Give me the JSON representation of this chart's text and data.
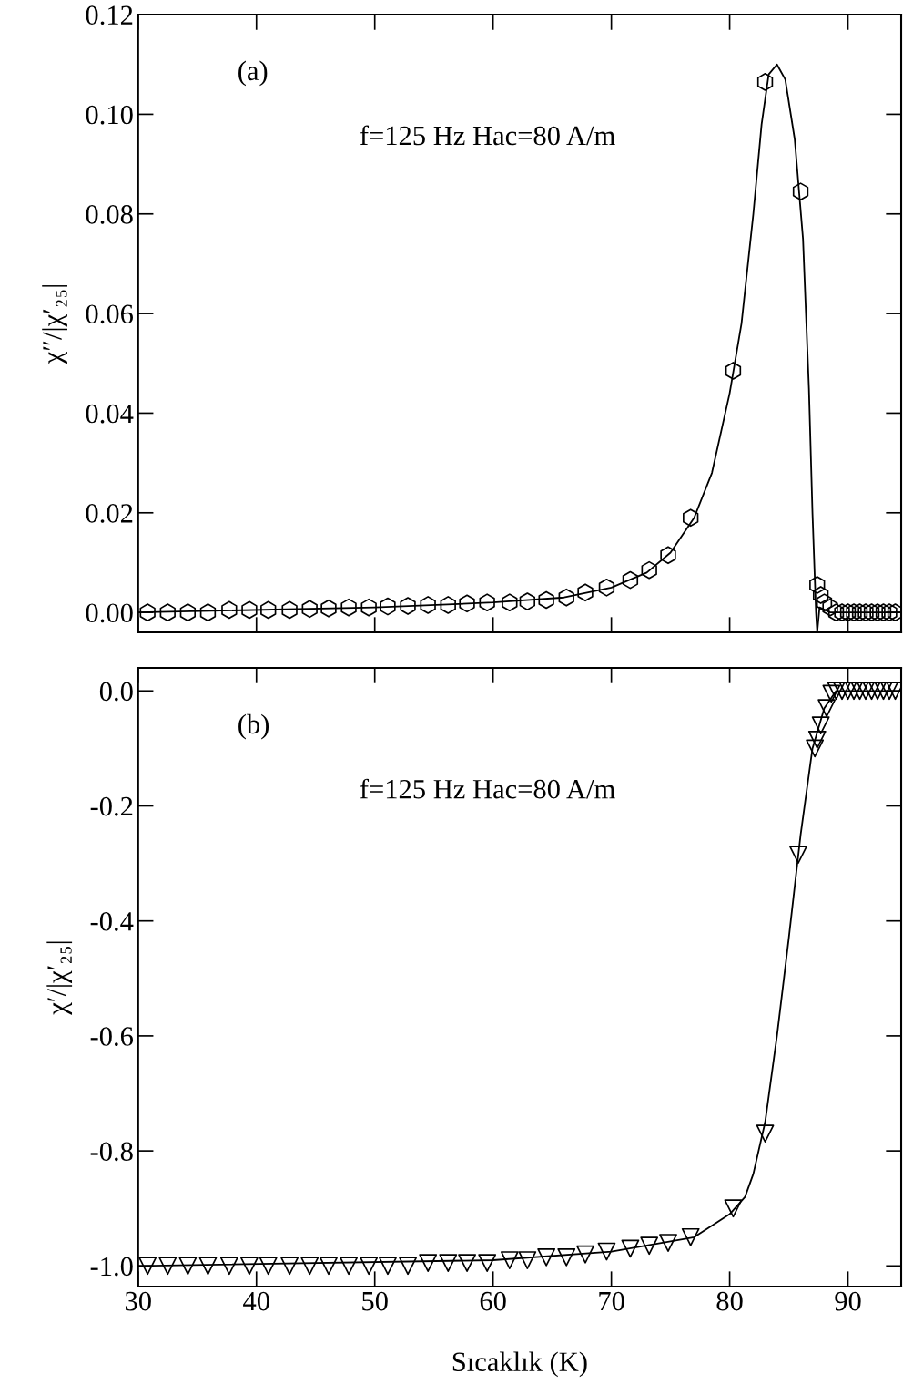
{
  "chart_data": [
    {
      "type": "scatter",
      "ylabel": "χ″/|χ′₂₅|",
      "annotations": [
        "(a)",
        "f=125 Hz Hac=80 A/m"
      ],
      "xlim": [
        30,
        94.5
      ],
      "ylim": [
        -0.004,
        0.12
      ],
      "xticks": [
        30,
        40,
        50,
        60,
        70,
        80,
        90
      ],
      "yticks": [
        {
          "value": 0,
          "label": "0.00"
        },
        {
          "value": 0.02,
          "label": "0.02"
        },
        {
          "value": 0.04,
          "label": "0.04"
        },
        {
          "value": 0.06,
          "label": "0.06"
        },
        {
          "value": 0.08,
          "label": "0.08"
        },
        {
          "value": 0.1,
          "label": "0.10"
        },
        {
          "value": 0.12,
          "label": "0.12"
        }
      ],
      "tick_labels": "y",
      "grid": false,
      "legend": false,
      "series": [
        {
          "color": "#000000",
          "x": [
            30.8,
            32.5,
            34.2,
            35.9,
            37.7,
            39.4,
            41.0,
            42.8,
            44.5,
            46.1,
            47.8,
            49.5,
            51.1,
            52.8,
            54.5,
            56.2,
            57.8,
            59.5,
            61.4,
            62.9,
            64.5,
            66.2,
            67.8,
            69.6,
            71.6,
            73.2,
            74.8,
            76.7,
            80.3,
            83.0,
            86.0,
            87.4,
            87.7,
            88.0,
            88.5,
            89.0,
            89.5,
            90.0,
            90.5,
            91.0,
            91.5,
            92.0,
            92.5,
            93.0,
            93.5,
            94.0
          ],
          "values": [
            0.0,
            0.0,
            0.0,
            0.0,
            0.0005,
            0.0005,
            0.0005,
            0.0005,
            0.0007,
            0.0008,
            0.001,
            0.001,
            0.0012,
            0.0013,
            0.0015,
            0.0015,
            0.0018,
            0.002,
            0.002,
            0.0022,
            0.0025,
            0.003,
            0.004,
            0.005,
            0.0065,
            0.0085,
            0.0115,
            0.019,
            0.0485,
            0.1065,
            0.0845,
            0.0055,
            0.0035,
            0.002,
            0.001,
            0.0,
            0.0,
            0.0,
            0.0,
            0.0,
            0.0,
            0.0,
            0.0,
            0.0,
            0.0,
            0.0
          ]
        },
        {
          "type": "line",
          "line_style": "solid",
          "color": "#000000",
          "x": [
            30,
            50,
            60,
            66,
            70,
            73,
            75,
            77,
            78.5,
            80,
            81,
            82,
            82.7,
            83.3,
            84,
            84.7,
            85.5,
            86.2,
            86.7,
            87.0,
            87.3,
            87.4,
            87.6,
            88.5,
            94.5
          ],
          "values": [
            0.0,
            0.001,
            0.002,
            0.003,
            0.005,
            0.008,
            0.012,
            0.019,
            0.028,
            0.044,
            0.058,
            0.08,
            0.098,
            0.108,
            0.11,
            0.107,
            0.095,
            0.075,
            0.045,
            0.02,
            0.0,
            -0.004,
            0.001,
            0.0,
            0.0
          ]
        }
      ]
    },
    {
      "type": "scatter",
      "xlabel": "Sıcaklık (K)",
      "ylabel": "χ′/|χ′₂₅|",
      "annotations": [
        "(b)",
        "f=125 Hz Hac=80 A/m"
      ],
      "xlim": [
        30,
        94.5
      ],
      "ylim": [
        -1.036,
        0.04
      ],
      "xticks": [
        30,
        40,
        50,
        60,
        70,
        80,
        90
      ],
      "yticks": [
        {
          "value": -1.0,
          "label": "-1.0"
        },
        {
          "value": -0.8,
          "label": "-0.8"
        },
        {
          "value": -0.6,
          "label": "-0.6"
        },
        {
          "value": -0.4,
          "label": "-0.4"
        },
        {
          "value": -0.2,
          "label": "-0.2"
        },
        {
          "value": 0,
          "label": "0.0"
        }
      ],
      "grid": false,
      "legend": false,
      "series": [
        {
          "marker": "triangle",
          "color": "#000000",
          "x": [
            30.8,
            32.5,
            34.2,
            35.9,
            37.7,
            39.4,
            41.0,
            42.8,
            44.5,
            46.1,
            47.8,
            49.5,
            51.1,
            52.8,
            54.5,
            56.2,
            57.8,
            59.5,
            61.4,
            62.9,
            64.5,
            66.2,
            67.8,
            69.6,
            71.6,
            73.2,
            74.8,
            76.7,
            80.3,
            83.0,
            85.8,
            87.2,
            87.4,
            87.7,
            88.2,
            88.6,
            89.0,
            89.5,
            90.0,
            90.5,
            91.0,
            91.5,
            92.0,
            92.5,
            93.0,
            93.5,
            94.0
          ],
          "values": [
            -1.0,
            -1.0,
            -1.0,
            -1.0,
            -1.0,
            -1.0,
            -1.0,
            -1.0,
            -1.0,
            -1.0,
            -1.0,
            -1.0,
            -1.0,
            -1.0,
            -0.995,
            -0.995,
            -0.995,
            -0.995,
            -0.99,
            -0.99,
            -0.985,
            -0.985,
            -0.98,
            -0.975,
            -0.97,
            -0.965,
            -0.96,
            -0.95,
            -0.9,
            -0.77,
            -0.285,
            -0.1,
            -0.085,
            -0.06,
            -0.03,
            -0.005,
            0.0,
            0.0,
            0.0,
            0.0,
            0.0,
            0.0,
            0.0,
            0.0,
            0.0,
            0.0,
            0.0
          ]
        },
        {
          "type": "line",
          "line_style": "solid",
          "color": "#000000",
          "x": [
            30,
            60,
            70,
            77,
            80,
            81.3,
            82,
            83,
            84,
            85,
            86,
            87,
            88,
            89,
            94.5
          ],
          "values": [
            -1.0,
            -0.99,
            -0.975,
            -0.95,
            -0.91,
            -0.88,
            -0.84,
            -0.75,
            -0.6,
            -0.43,
            -0.25,
            -0.1,
            -0.03,
            0.0,
            0.0
          ]
        }
      ]
    }
  ]
}
